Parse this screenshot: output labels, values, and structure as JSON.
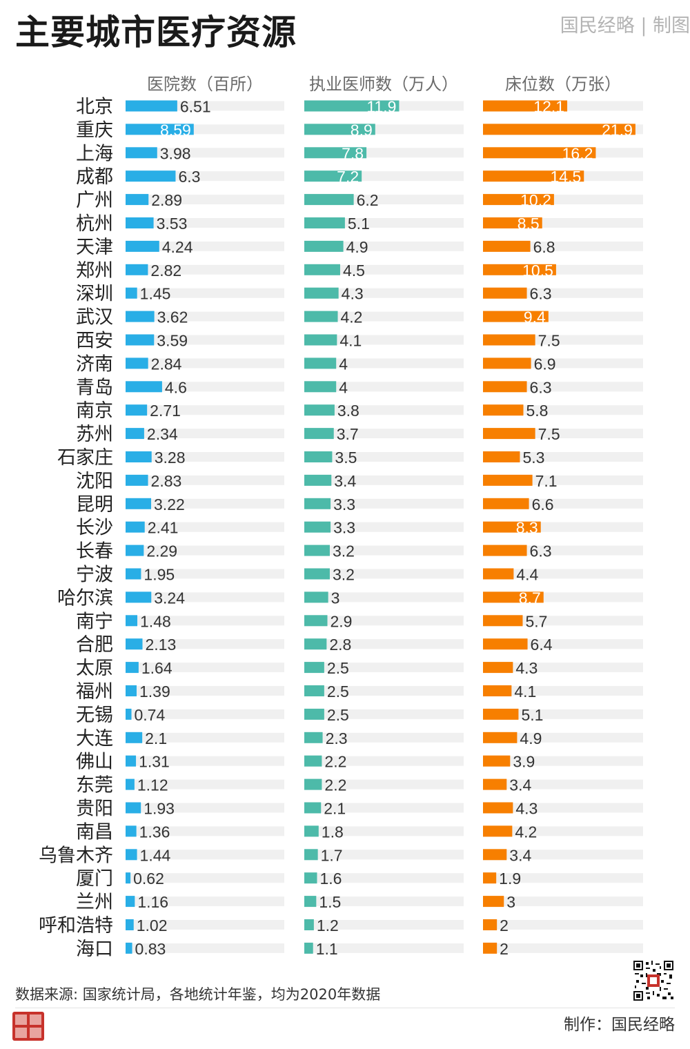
{
  "title": "主要城市医疗资源",
  "brand": "国民经略 | 制图",
  "source": "数据来源: 国家统计局，各地统计年鉴，均为2020年数据",
  "maker": "制作：国民经略",
  "colors": {
    "hospitals": "#29aee6",
    "doctors": "#4dbaa9",
    "beds": "#f77f00",
    "track": "#f0f0f0",
    "label_on_bar": "#ffffff",
    "label": "#333333"
  },
  "chart_data": {
    "type": "bar",
    "orientation": "horizontal",
    "categories": [
      "北京",
      "重庆",
      "上海",
      "成都",
      "广州",
      "杭州",
      "天津",
      "郑州",
      "深圳",
      "武汉",
      "西安",
      "济南",
      "青岛",
      "南京",
      "苏州",
      "石家庄",
      "沈阳",
      "昆明",
      "长沙",
      "长春",
      "宁波",
      "哈尔滨",
      "南宁",
      "合肥",
      "太原",
      "福州",
      "无锡",
      "大连",
      "佛山",
      "东莞",
      "贵阳",
      "南昌",
      "乌鲁木齐",
      "厦门",
      "兰州",
      "呼和浩特",
      "海口"
    ],
    "series": [
      {
        "name": "医院数（百所）",
        "values": [
          6.51,
          8.59,
          3.98,
          6.3,
          2.89,
          3.53,
          4.24,
          2.82,
          1.45,
          3.62,
          3.59,
          2.84,
          4.6,
          2.71,
          2.34,
          3.28,
          2.83,
          3.22,
          2.41,
          2.29,
          1.95,
          3.24,
          1.48,
          2.13,
          1.64,
          1.39,
          0.74,
          2.1,
          1.31,
          1.12,
          1.93,
          1.36,
          1.44,
          0.62,
          1.16,
          1.02,
          0.83
        ],
        "labels": [
          "6.51",
          "8.59",
          "3.98",
          "6.3",
          "2.89",
          "3.53",
          "4.24",
          "2.82",
          "1.45",
          "3.62",
          "3.59",
          "2.84",
          "4.6",
          "2.71",
          "2.34",
          "3.28",
          "2.83",
          "3.22",
          "2.41",
          "2.29",
          "1.95",
          "3.24",
          "1.48",
          "2.13",
          "1.64",
          "1.39",
          "0.74",
          "2.1",
          "1.31",
          "1.12",
          "1.93",
          "1.36",
          "1.44",
          "0.62",
          "1.16",
          "1.02",
          "0.83"
        ],
        "xlim": [
          0,
          20
        ]
      },
      {
        "name": "执业医师数（万人）",
        "values": [
          11.9,
          8.9,
          7.8,
          7.2,
          6.2,
          5.1,
          4.9,
          4.5,
          4.3,
          4.2,
          4.1,
          4,
          4,
          3.8,
          3.7,
          3.5,
          3.4,
          3.3,
          3.3,
          3.2,
          3.2,
          3,
          2.9,
          2.8,
          2.5,
          2.5,
          2.5,
          2.3,
          2.2,
          2.2,
          2.1,
          1.8,
          1.7,
          1.6,
          1.5,
          1.2,
          1.1
        ],
        "labels": [
          "11.9",
          "8.9",
          "7.8",
          "7.2",
          "6.2",
          "5.1",
          "4.9",
          "4.5",
          "4.3",
          "4.2",
          "4.1",
          "4",
          "4",
          "3.8",
          "3.7",
          "3.5",
          "3.4",
          "3.3",
          "3.3",
          "3.2",
          "3.2",
          "3",
          "2.9",
          "2.8",
          "2.5",
          "2.5",
          "2.5",
          "2.3",
          "2.2",
          "2.2",
          "2.1",
          "1.8",
          "1.7",
          "1.6",
          "1.5",
          "1.2",
          "1.1"
        ],
        "xlim": [
          0,
          20
        ]
      },
      {
        "name": "床位数（万张）",
        "values": [
          12.1,
          21.9,
          16.2,
          14.5,
          10.2,
          8.5,
          6.8,
          10.5,
          6.3,
          9.4,
          7.5,
          6.9,
          6.3,
          5.8,
          7.5,
          5.3,
          7.1,
          6.6,
          8.3,
          6.3,
          4.4,
          8.7,
          5.7,
          6.4,
          4.3,
          4.1,
          5.1,
          4.9,
          3.9,
          3.4,
          4.3,
          4.2,
          3.4,
          1.9,
          3,
          2,
          2
        ],
        "labels": [
          "12.1",
          "21.9",
          "16.2",
          "14.5",
          "10.2",
          "8.5",
          "6.8",
          "10.5",
          "6.3",
          "9.4",
          "7.5",
          "6.9",
          "6.3",
          "5.8",
          "7.5",
          "5.3",
          "7.1",
          "6.6",
          "8.3",
          "6.3",
          "4.4",
          "8.7",
          "5.7",
          "6.4",
          "4.3",
          "4.1",
          "5.1",
          "4.9",
          "3.9",
          "3.4",
          "4.3",
          "4.2",
          "3.4",
          "1.9",
          "3",
          "2",
          "2"
        ],
        "xlim": [
          0,
          23
        ]
      }
    ],
    "legend": "none",
    "grid": false
  }
}
